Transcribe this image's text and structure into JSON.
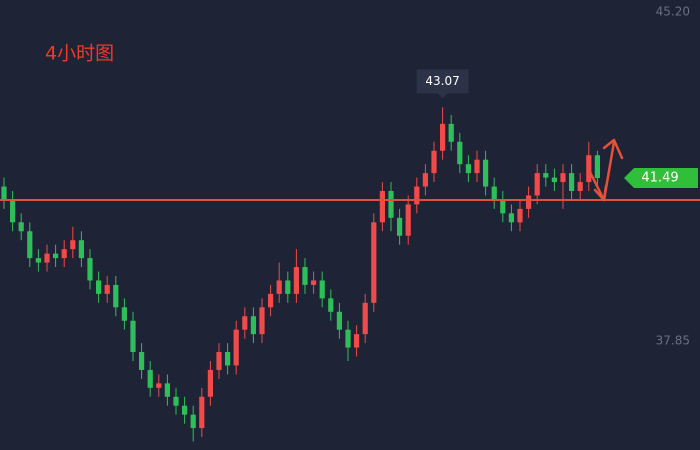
{
  "chart_data": {
    "type": "candlestick",
    "title": "4小时图",
    "up_color": "#f04a4a",
    "down_color": "#2fbf5a",
    "open": [
      41.3,
      41.0,
      40.5,
      40.3,
      39.7,
      39.6,
      39.8,
      39.7,
      39.9,
      40.1,
      39.7,
      39.2,
      38.9,
      39.1,
      38.6,
      38.3,
      37.6,
      37.2,
      36.8,
      36.9,
      36.6,
      36.4,
      36.2,
      35.9,
      36.6,
      37.2,
      37.6,
      37.3,
      38.1,
      38.4,
      38.0,
      38.6,
      38.9,
      39.2,
      38.9,
      39.5,
      39.1,
      39.2,
      38.8,
      38.5,
      38.1,
      37.7,
      38.0,
      38.7,
      40.5,
      41.2,
      40.6,
      40.2,
      40.9,
      41.3,
      41.6,
      42.1,
      42.7,
      42.3,
      41.8,
      41.6,
      41.9,
      41.3,
      41.0,
      40.7,
      40.5,
      40.8,
      41.1,
      41.6,
      41.5,
      41.4,
      41.6,
      41.2,
      41.4,
      42.0
    ],
    "high": [
      41.5,
      41.2,
      40.7,
      40.5,
      39.9,
      40.0,
      40.0,
      40.1,
      40.4,
      40.3,
      39.9,
      39.4,
      39.3,
      39.3,
      38.8,
      38.5,
      37.8,
      37.4,
      37.1,
      37.1,
      36.8,
      36.6,
      36.4,
      36.8,
      37.4,
      37.8,
      37.8,
      38.3,
      38.6,
      38.6,
      38.8,
      39.1,
      39.6,
      39.4,
      39.9,
      39.7,
      39.4,
      39.4,
      39.0,
      38.7,
      38.3,
      38.2,
      38.9,
      40.7,
      41.4,
      41.4,
      40.8,
      41.1,
      41.5,
      41.8,
      42.3,
      43.07,
      42.9,
      42.5,
      42.0,
      42.1,
      42.1,
      41.5,
      41.2,
      40.9,
      41.0,
      41.3,
      41.8,
      41.8,
      41.7,
      41.8,
      41.8,
      41.6,
      42.3,
      42.1
    ],
    "low": [
      40.8,
      40.3,
      40.1,
      39.5,
      39.4,
      39.4,
      39.5,
      39.5,
      39.7,
      39.5,
      39.0,
      38.7,
      38.7,
      38.4,
      38.1,
      37.4,
      37.0,
      36.6,
      36.6,
      36.4,
      36.2,
      36.0,
      35.6,
      35.7,
      36.4,
      37.0,
      37.1,
      37.1,
      37.9,
      37.8,
      37.8,
      38.4,
      38.7,
      38.7,
      38.7,
      38.9,
      38.9,
      38.6,
      38.3,
      37.9,
      37.4,
      37.5,
      37.8,
      38.5,
      40.3,
      40.3,
      40.0,
      40.0,
      40.7,
      41.1,
      41.4,
      41.9,
      42.1,
      41.6,
      41.4,
      41.4,
      41.1,
      40.8,
      40.5,
      40.3,
      40.3,
      40.6,
      40.9,
      41.3,
      41.2,
      40.8,
      41.0,
      41.0,
      41.2,
      41.3
    ],
    "close": [
      41.0,
      40.5,
      40.3,
      39.7,
      39.6,
      39.8,
      39.7,
      39.9,
      40.1,
      39.7,
      39.2,
      38.9,
      39.1,
      38.6,
      38.3,
      37.6,
      37.2,
      36.8,
      36.9,
      36.6,
      36.4,
      36.2,
      35.9,
      36.6,
      37.2,
      37.6,
      37.3,
      38.1,
      38.4,
      38.0,
      38.6,
      38.9,
      39.2,
      38.9,
      39.5,
      39.1,
      39.2,
      38.8,
      38.5,
      38.1,
      37.7,
      38.0,
      38.7,
      40.5,
      41.2,
      40.6,
      40.2,
      40.9,
      41.3,
      41.6,
      42.1,
      42.7,
      42.3,
      41.8,
      41.6,
      41.9,
      41.3,
      41.0,
      40.7,
      40.5,
      40.8,
      41.1,
      41.6,
      41.5,
      41.4,
      41.6,
      41.2,
      41.4,
      42.0,
      41.49
    ],
    "ylim": [
      35.41,
      45.47
    ],
    "yticks": [
      {
        "value": 45.2,
        "label": "45.20"
      },
      37.85
    ],
    "level": 41.0,
    "level_color": "#e0503a",
    "high_marker": 43.07,
    "last_price": 41.49,
    "last_price_color": "#2fbf3a"
  }
}
